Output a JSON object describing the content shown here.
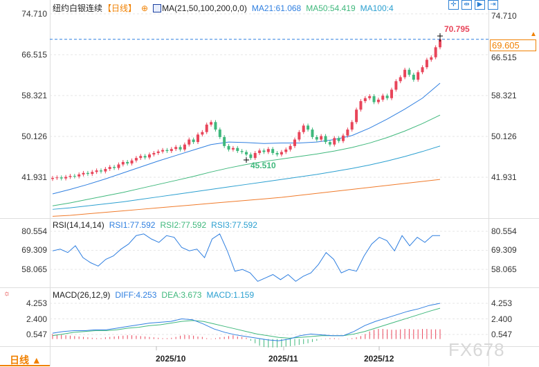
{
  "header": {
    "symbol": "纽约白银连续",
    "period": "【日线】",
    "add_icon": "crosshair-plus-icon",
    "ma_label": "MA(21,50,100,200,0,0)",
    "ma21": "MA21:61.068",
    "ma50": "MA50:54.419",
    "ma100": "MA100:4"
  },
  "toolbar": [
    "crosshair-icon",
    "fit-range-icon",
    "play-step-icon",
    "goto-latest-icon"
  ],
  "price_axis": {
    "left": [
      "74.710",
      "66.515",
      "58.321",
      "50.126",
      "41.931"
    ],
    "right": [
      "74.710",
      "66.515",
      "58.321",
      "50.126",
      "41.931"
    ],
    "ticks": [
      74.71,
      66.515,
      58.321,
      50.126,
      41.931
    ]
  },
  "last_price": "69.605",
  "last_price_value": 69.605,
  "high_label": "70.795",
  "low_label": "45.510",
  "rsi": {
    "label": "RSI(14,14,14)",
    "rsi1": "RSI1:77.592",
    "rsi2": "RSI2:77.592",
    "rsi3": "RSI3:77.592",
    "axis": [
      "80.554",
      "69.309",
      "58.065"
    ],
    "ticks": [
      80.554,
      69.309,
      58.065
    ],
    "values": [
      69,
      70,
      68,
      72,
      65,
      62,
      60,
      64,
      66,
      70,
      73,
      78,
      79,
      76,
      74,
      78,
      77,
      71,
      69,
      70,
      65,
      76,
      79,
      69,
      57,
      58,
      56,
      51,
      53,
      55,
      52,
      55,
      51,
      54,
      56,
      61,
      68,
      64,
      56,
      58,
      57,
      66,
      73,
      77,
      75,
      69,
      78,
      72,
      77,
      74,
      78,
      78
    ]
  },
  "macd": {
    "label": "MACD(26,12,9)",
    "diff": "DIFF:4.253",
    "dea": "DEA:3.673",
    "macd": "MACD:1.159",
    "axis": [
      "4.253",
      "2.400",
      "0.547"
    ],
    "ticks": [
      4.253,
      2.4,
      0.547
    ],
    "diff_values": [
      0.7,
      0.9,
      1.0,
      1.0,
      1.1,
      1.1,
      1.3,
      1.5,
      1.7,
      1.9,
      2.0,
      2.1,
      2.4,
      2.3,
      1.8,
      1.2,
      0.8,
      0.5,
      0.3,
      0.1,
      -0.1,
      -0.2,
      0.0,
      0.4,
      0.6,
      0.5,
      0.4,
      0.4,
      0.9,
      1.6,
      2.1,
      2.5,
      2.9,
      3.3,
      3.6,
      4.0,
      4.25
    ],
    "dea_values": [
      0.4,
      0.6,
      0.8,
      0.9,
      1.0,
      1.0,
      1.1,
      1.3,
      1.4,
      1.6,
      1.7,
      1.9,
      2.1,
      2.2,
      2.1,
      1.8,
      1.5,
      1.2,
      0.9,
      0.6,
      0.4,
      0.2,
      0.1,
      0.2,
      0.3,
      0.4,
      0.4,
      0.4,
      0.6,
      0.9,
      1.3,
      1.7,
      2.1,
      2.5,
      2.9,
      3.3,
      3.67
    ],
    "hist": [
      0.6,
      0.55,
      0.5,
      0.45,
      0.4,
      0.35,
      0.3,
      0.25,
      0.2,
      0.15,
      0.1,
      0.1,
      0.2,
      0.25,
      0.3,
      0.35,
      0.4,
      0.45,
      0.45,
      0.4,
      0.35,
      0.3,
      0.25,
      0.2,
      0.15,
      0.1,
      0.1,
      0.15,
      0.25,
      0.4,
      0.5,
      0.45,
      0.4,
      0.3,
      0.25,
      0.1,
      0.05,
      0.1,
      0.2,
      0.25,
      0.35,
      0.45,
      0.3,
      0.25,
      0.15,
      -0.2,
      -0.5,
      -0.8,
      -0.95,
      -1.0,
      -1.0,
      -1.0,
      -0.95,
      -0.9,
      -0.85,
      -0.8,
      -0.7,
      -0.6,
      -0.5,
      -0.35,
      -0.2,
      -0.05,
      0.05,
      0.1,
      0.1,
      0.05,
      0.0,
      0.05,
      0.1,
      0.2,
      0.35,
      0.6,
      0.9,
      1.1,
      1.2,
      1.2,
      1.15,
      1.1,
      1.1,
      1.15,
      1.2,
      1.2,
      1.15,
      1.15,
      1.2,
      1.2,
      1.15,
      1.15,
      1.16
    ]
  },
  "date_axis": [
    "2025/10",
    "2025/11",
    "2025/12"
  ],
  "period_button": "日线 ▲",
  "watermark": "FX678",
  "colors": {
    "up": "#e8455a",
    "down": "#3fb87c",
    "ma21": "#2f7fe0",
    "ma50": "#3fb87c",
    "ma100": "#2a9fd0",
    "ma200": "#f07a2a",
    "accent": "#f08000"
  },
  "candles_close": [
    41.8,
    41.9,
    41.7,
    42.0,
    42.2,
    42.1,
    42.5,
    42.8,
    42.6,
    43.0,
    43.3,
    43.1,
    43.6,
    44.0,
    43.8,
    44.5,
    45.0,
    44.7,
    45.3,
    45.8,
    46.2,
    45.9,
    46.5,
    46.8,
    47.1,
    47.4,
    47.2,
    47.6,
    48.0,
    47.5,
    48.5,
    49.5,
    49.0,
    50.5,
    51.0,
    52.5,
    53.0,
    51.5,
    50.0,
    48.2,
    47.5,
    47.8,
    47.2,
    47.0,
    46.5,
    45.8,
    46.8,
    47.3,
    47.0,
    47.6,
    46.8,
    46.5,
    47.0,
    47.5,
    48.2,
    49.5,
    51.0,
    52.3,
    51.5,
    50.0,
    49.5,
    50.2,
    49.0,
    48.5,
    49.8,
    49.2,
    50.3,
    51.5,
    53.0,
    55.5,
    57.2,
    57.8,
    58.2,
    57.0,
    57.5,
    58.3,
    57.8,
    59.5,
    61.2,
    62.0,
    63.5,
    62.5,
    61.5,
    63.0,
    64.0,
    65.5,
    66.0,
    68.0,
    69.6
  ],
  "ma_lines": {
    "ma21": [
      38.6,
      39.5,
      40.5,
      41.6,
      42.8,
      44.0,
      45.2,
      46.3,
      47.4,
      48.5,
      49.0,
      48.9,
      48.7,
      48.8,
      48.8,
      49.0,
      49.5,
      50.3,
      51.8,
      53.6,
      55.6,
      57.8,
      60.8
    ],
    "ma50": [
      36.2,
      36.8,
      37.5,
      38.2,
      38.9,
      39.7,
      40.5,
      41.3,
      42.1,
      43.0,
      43.8,
      44.5,
      45.1,
      45.6,
      46.1,
      46.6,
      47.2,
      47.9,
      48.8,
      49.9,
      51.2,
      52.7,
      54.4
    ],
    "ma100": [
      35.5,
      35.8,
      36.2,
      36.6,
      37.0,
      37.5,
      38.0,
      38.5,
      39.0,
      39.5,
      40.0,
      40.5,
      41.0,
      41.5,
      42.0,
      42.5,
      43.1,
      43.7,
      44.4,
      45.2,
      46.1,
      47.1,
      48.2
    ],
    "ma200": [
      34.1,
      34.3,
      34.6,
      34.9,
      35.2,
      35.5,
      35.8,
      36.1,
      36.4,
      36.7,
      37.0,
      37.3,
      37.6,
      37.9,
      38.3,
      38.7,
      39.1,
      39.5,
      39.9,
      40.3,
      40.7,
      41.1,
      41.5
    ]
  }
}
